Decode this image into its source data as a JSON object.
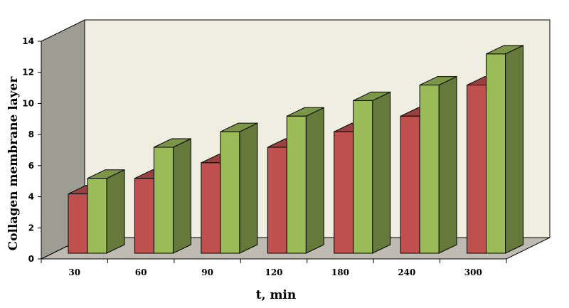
{
  "chart_data": {
    "type": "bar",
    "categories": [
      "30",
      "60",
      "90",
      "120",
      "180",
      "240",
      "300"
    ],
    "series": [
      {
        "values": [
          4,
          5,
          6,
          7,
          8,
          9,
          11
        ],
        "color": "#c0504d"
      },
      {
        "values": [
          5,
          7,
          8,
          9,
          10,
          11,
          13
        ],
        "color": "#9bbb59"
      }
    ],
    "xlabel": "t, min",
    "ylabel": "Collagen membrane layer",
    "ylim": [
      0,
      14
    ],
    "yticks": [
      0,
      2,
      4,
      6,
      8,
      10,
      12,
      14
    ],
    "style": "3d-column",
    "wall_colors": {
      "back": "#efeee0",
      "side": "#9e9d93",
      "floor": "#bfbbb2"
    }
  }
}
